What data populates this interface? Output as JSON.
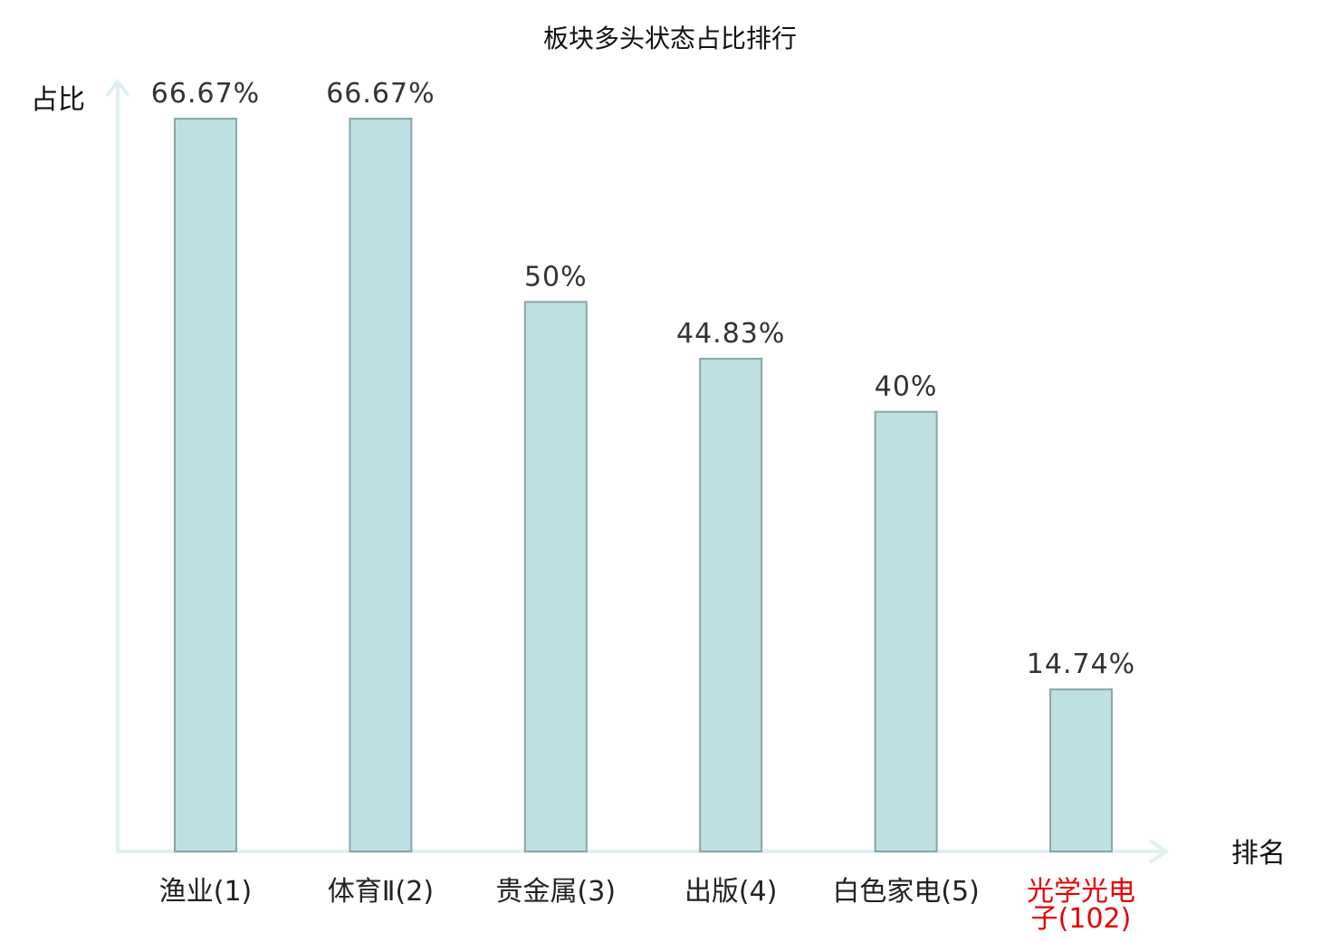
{
  "chart_data": {
    "type": "bar",
    "title": "板块多头状态占比排行",
    "ylabel": "占比",
    "xlabel": "排名",
    "ylim": [
      0,
      70
    ],
    "grid": false,
    "categories": [
      "渔业(1)",
      "体育Ⅱ(2)",
      "贵金属(3)",
      "出版(4)",
      "白色家电(5)",
      "光学光电子(102)"
    ],
    "category_lines": [
      [
        "渔业(1)"
      ],
      [
        "体育Ⅱ(2)"
      ],
      [
        "贵金属(3)"
      ],
      [
        "出版(4)"
      ],
      [
        "白色家电(5)"
      ],
      [
        "光学光电",
        "子(102)"
      ]
    ],
    "values": [
      66.67,
      66.67,
      50,
      44.83,
      40,
      14.74
    ],
    "value_labels": [
      "66.67%",
      "66.67%",
      "50%",
      "44.83%",
      "40%",
      "14.74%"
    ],
    "highlight_index": 5,
    "colors": {
      "bar_fill": "#bde0e3",
      "bar_stroke": "#8aa5a8",
      "axis": "#dff1ef",
      "highlight_text": "#e60000"
    }
  }
}
